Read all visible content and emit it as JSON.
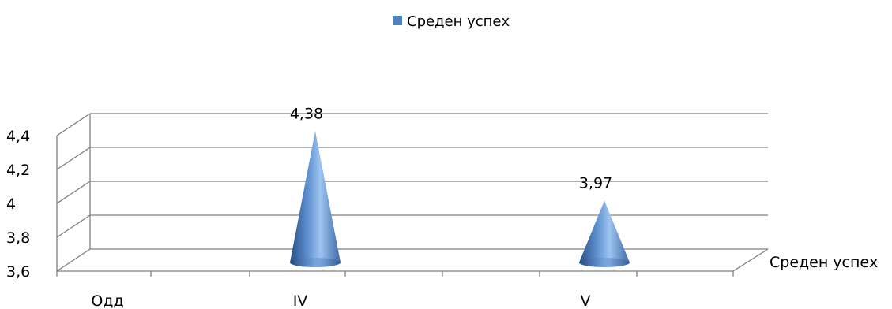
{
  "chart_data": {
    "type": "bar",
    "style": "3d-cone",
    "categories": [
      "Одд",
      "IV",
      "V"
    ],
    "series": [
      {
        "name": "Среден успех",
        "values": [
          null,
          4.38,
          3.97
        ],
        "color": "#4f81bd"
      }
    ],
    "data_labels": [
      "",
      "4,38",
      "3,97"
    ],
    "ylim": [
      3.6,
      4.4
    ],
    "yticks": [
      "3,6",
      "3,8",
      "4",
      "4,2",
      "4,4"
    ],
    "ytick_values": [
      3.6,
      3.8,
      4.0,
      4.2,
      4.4
    ],
    "depth_axis_label": "Среден успех",
    "legend": {
      "position": "top-center",
      "entries": [
        "Среден успех"
      ]
    },
    "grid": true,
    "gridline_color": "#7f7f7f"
  }
}
